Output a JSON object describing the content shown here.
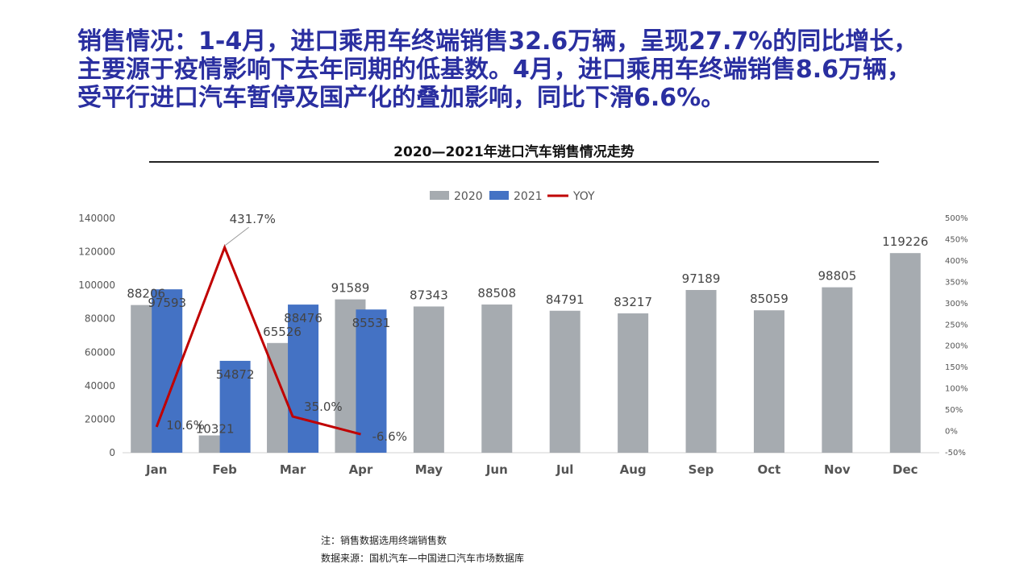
{
  "headline": {
    "line1": "销售情况：1-4月，进口乘用车终端销售32.6万辆，呈现27.7%的同比增长，",
    "line2": "主要源于疫情影响下去年同期的低基数。4月，进口乘用车终端销售8.6万辆，",
    "line3": "受平行进口汽车暂停及国产化的叠加影响，同比下滑6.6%。"
  },
  "notes": {
    "note": "注：销售数据选用终端销售数",
    "source": "数据来源：国机汽车—中国进口汽车市场数据库"
  },
  "colors": {
    "s2020": "#a6abb0",
    "s2021": "#4472c4",
    "yoy": "#c00000",
    "headline": "#2a2fa0"
  },
  "chart_data": {
    "type": "bar",
    "title": "2020—2021年进口汽车销售情况走势",
    "categories": [
      "Jan",
      "Feb",
      "Mar",
      "Apr",
      "May",
      "Jun",
      "Jul",
      "Aug",
      "Sep",
      "Oct",
      "Nov",
      "Dec"
    ],
    "series": [
      {
        "name": "2020",
        "type": "bar",
        "values": [
          88206,
          10321,
          65526,
          91589,
          87343,
          88508,
          84791,
          83217,
          97189,
          85059,
          98805,
          119226
        ]
      },
      {
        "name": "2021",
        "type": "bar",
        "values": [
          97593,
          54872,
          88476,
          85531,
          null,
          null,
          null,
          null,
          null,
          null,
          null,
          null
        ]
      },
      {
        "name": "YOY",
        "type": "line",
        "axis": "right",
        "values": [
          10.6,
          431.7,
          35.0,
          -6.6,
          null,
          null,
          null,
          null,
          null,
          null,
          null,
          null
        ],
        "labels": [
          "10.6%",
          "431.7%",
          "35.0%",
          "-6.6%"
        ]
      }
    ],
    "y_left": {
      "ylim": [
        0,
        140000
      ],
      "ticks": [
        "0",
        "20000",
        "40000",
        "60000",
        "80000",
        "100000",
        "120000",
        "140000"
      ]
    },
    "y_right": {
      "ylim": [
        -50,
        500
      ],
      "ticks": [
        "-50%",
        "0%",
        "50%",
        "100%",
        "150%",
        "200%",
        "250%",
        "300%",
        "350%",
        "400%",
        "450%",
        "500%"
      ]
    },
    "legend": {
      "position": "top",
      "items": [
        "2020",
        "2021",
        "YOY"
      ]
    },
    "grid": false
  }
}
